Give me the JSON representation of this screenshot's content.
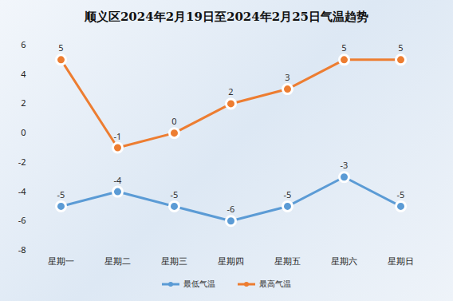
{
  "chart_data": {
    "type": "line",
    "title": "顺义区2024年2月19日至2024年2月25日气温趋势",
    "categories": [
      "星期一",
      "星期二",
      "星期三",
      "星期四",
      "星期五",
      "星期六",
      "星期日"
    ],
    "series": [
      {
        "name": "最低气温",
        "color": "#5b9bd5",
        "marker": "circle",
        "line_style": "solid",
        "values": [
          -5,
          -4,
          -5,
          -6,
          -5,
          -3,
          -5
        ]
      },
      {
        "name": "最高气温",
        "color": "#ed7d31",
        "marker": "circle",
        "line_style": "solid",
        "values": [
          5,
          -1,
          0,
          2,
          3,
          5,
          5
        ]
      }
    ],
    "ylim": [
      -8,
      6
    ],
    "yticks": [
      -8,
      -6,
      -4,
      -2,
      0,
      2,
      4,
      6
    ],
    "grid": false,
    "data_labels": true,
    "legend": "bottom"
  }
}
